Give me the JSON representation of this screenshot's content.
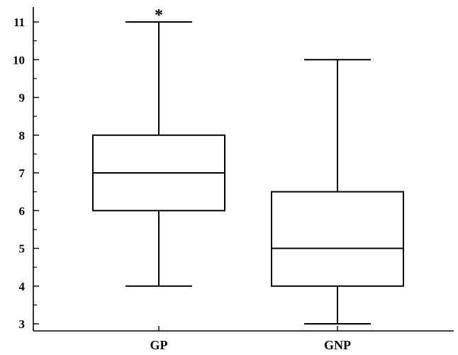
{
  "chart_data": {
    "type": "boxplot",
    "title": "",
    "xlabel": "",
    "ylabel": "",
    "ylim": [
      3,
      11
    ],
    "yticks": [
      3,
      4,
      5,
      6,
      7,
      8,
      9,
      10,
      11
    ],
    "yticks_minor": [
      3.5,
      4.5,
      5.5,
      6.5,
      7.5,
      8.5,
      9.5,
      10.5
    ],
    "grid": false,
    "categories": [
      "GP",
      "GNP"
    ],
    "boxes": [
      {
        "category": "GP",
        "min": 4,
        "q1": 6,
        "median": 7,
        "q3": 8,
        "max": 11,
        "annotation": "*"
      },
      {
        "category": "GNP",
        "min": 3,
        "q1": 4,
        "median": 5,
        "q3": 6.5,
        "max": 10,
        "annotation": ""
      }
    ],
    "colors": {
      "stroke": "#000000",
      "background": "#ffffff"
    }
  }
}
